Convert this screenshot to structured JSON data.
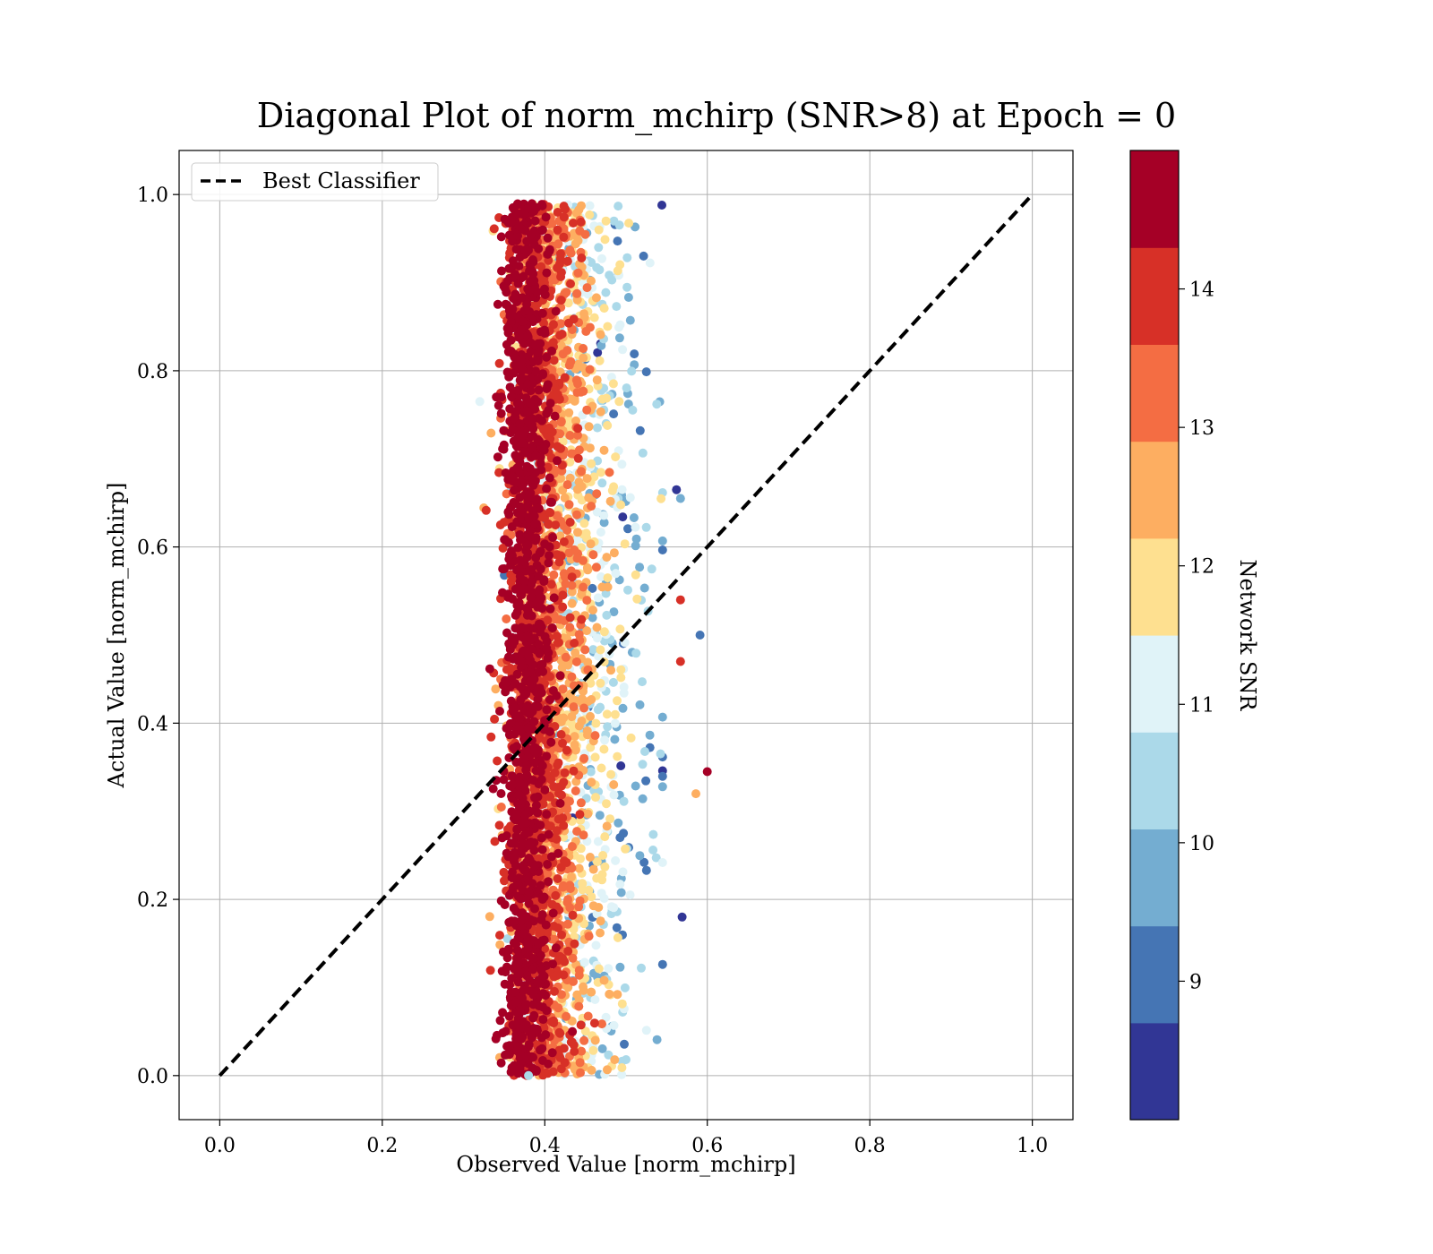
{
  "chart_data": {
    "type": "scatter",
    "title": "Diagonal Plot of norm_mchirp (SNR>8) at Epoch = 0",
    "xlabel": "Observed Value [norm_mchirp]",
    "ylabel": "Actual Value [norm_mchirp]",
    "xlim": [
      -0.05,
      1.05
    ],
    "ylim": [
      -0.05,
      1.05
    ],
    "xticks": [
      "0.0",
      "0.2",
      "0.4",
      "0.6",
      "0.8",
      "1.0"
    ],
    "yticks": [
      "0.0",
      "0.2",
      "0.4",
      "0.6",
      "0.8",
      "1.0"
    ],
    "grid": true,
    "legend": {
      "placement": "top-left",
      "entries": [
        "Best Classifier"
      ]
    },
    "reference_line": {
      "name": "Best Classifier",
      "style": "dashed",
      "color": "#000000",
      "x": [
        0.0,
        1.0
      ],
      "y": [
        0.0,
        1.0
      ]
    },
    "scatter_summary": {
      "x_range": [
        0.32,
        0.6
      ],
      "y_range": [
        0.0,
        0.99
      ],
      "densest_x": 0.37,
      "outliers": [
        {
          "x": 0.6,
          "y": 0.345,
          "snr": 14.8
        },
        {
          "x": 0.586,
          "y": 0.32,
          "snr": 12.5
        },
        {
          "x": 0.591,
          "y": 0.5,
          "snr": 9.0
        },
        {
          "x": 0.567,
          "y": 0.655,
          "snr": 9.9
        },
        {
          "x": 0.562,
          "y": 0.665,
          "snr": 8.4
        },
        {
          "x": 0.567,
          "y": 0.47,
          "snr": 13.8
        },
        {
          "x": 0.567,
          "y": 0.54,
          "snr": 13.8
        },
        {
          "x": 0.569,
          "y": 0.18,
          "snr": 8.6
        },
        {
          "x": 0.32,
          "y": 0.765,
          "snr": 11.2
        },
        {
          "x": 0.38,
          "y": 0.0,
          "snr": 10.6
        }
      ]
    },
    "colorbar": {
      "label": "Network SNR",
      "range": [
        8.0,
        15.0
      ],
      "ticks": [
        "9",
        "10",
        "11",
        "12",
        "13",
        "14"
      ],
      "colors": [
        "#313695",
        "#4575b4",
        "#74add1",
        "#abd9e9",
        "#e0f3f8",
        "#fee090",
        "#fdae61",
        "#f46d43",
        "#d73027",
        "#a50026"
      ]
    }
  }
}
